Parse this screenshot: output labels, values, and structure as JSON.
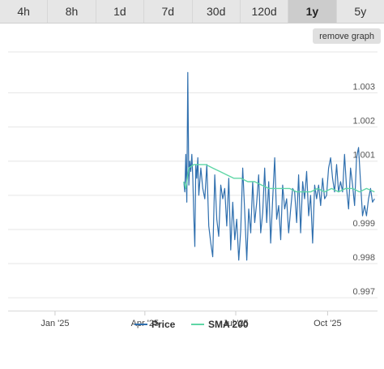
{
  "tabs": [
    {
      "label": "4h"
    },
    {
      "label": "8h"
    },
    {
      "label": "1d"
    },
    {
      "label": "7d"
    },
    {
      "label": "30d"
    },
    {
      "label": "120d"
    },
    {
      "label": "1y"
    },
    {
      "label": "5y"
    }
  ],
  "active_tab": "1y",
  "remove_graph_label": "remove graph",
  "chart_data": {
    "type": "line",
    "title": "",
    "xlabel": "",
    "ylabel": "",
    "ylim": [
      0.9966,
      1.0042
    ],
    "xlim": [
      "2024-11-15",
      "2025-11-20"
    ],
    "y_ticks": [
      0.997,
      0.998,
      0.999,
      1.0,
      1.001,
      1.002,
      1.003
    ],
    "y_tick_labels": [
      "0.997",
      "0.998",
      "0.999",
      "",
      "1.001",
      "1.002",
      "1.003"
    ],
    "x_ticks": [
      "2025-01-01",
      "2025-04-01",
      "2025-07-01",
      "2025-10-01"
    ],
    "x_tick_labels": [
      "Jan '25",
      "Apr '25",
      "Jul '25",
      "Oct '25"
    ],
    "grid": true,
    "legend_position": "bottom",
    "colors": {
      "Price": "#2f6fae",
      "SMA 200": "#5fd6a6"
    },
    "series": [
      {
        "name": "Price",
        "x": [
          "2025-05-10",
          "2025-05-11",
          "2025-05-12",
          "2025-05-13",
          "2025-05-14",
          "2025-05-15",
          "2025-05-16",
          "2025-05-17",
          "2025-05-18",
          "2025-05-19",
          "2025-05-20",
          "2025-05-21",
          "2025-05-22",
          "2025-05-23",
          "2025-05-24",
          "2025-05-25",
          "2025-05-27",
          "2025-05-29",
          "2025-05-31",
          "2025-06-02",
          "2025-06-04",
          "2025-06-06",
          "2025-06-08",
          "2025-06-10",
          "2025-06-12",
          "2025-06-14",
          "2025-06-16",
          "2025-06-18",
          "2025-06-20",
          "2025-06-22",
          "2025-06-24",
          "2025-06-26",
          "2025-06-28",
          "2025-06-30",
          "2025-07-02",
          "2025-07-04",
          "2025-07-06",
          "2025-07-08",
          "2025-07-10",
          "2025-07-12",
          "2025-07-14",
          "2025-07-16",
          "2025-07-18",
          "2025-07-20",
          "2025-07-22",
          "2025-07-24",
          "2025-07-26",
          "2025-07-28",
          "2025-07-30",
          "2025-08-01",
          "2025-08-03",
          "2025-08-05",
          "2025-08-07",
          "2025-08-09",
          "2025-08-11",
          "2025-08-13",
          "2025-08-15",
          "2025-08-17",
          "2025-08-19",
          "2025-08-21",
          "2025-08-23",
          "2025-08-25",
          "2025-08-27",
          "2025-08-29",
          "2025-08-31",
          "2025-09-02",
          "2025-09-04",
          "2025-09-06",
          "2025-09-08",
          "2025-09-10",
          "2025-09-12",
          "2025-09-14",
          "2025-09-16",
          "2025-09-18",
          "2025-09-20",
          "2025-09-22",
          "2025-09-24",
          "2025-09-26",
          "2025-09-28",
          "2025-09-30",
          "2025-10-02",
          "2025-10-04",
          "2025-10-06",
          "2025-10-08",
          "2025-10-10",
          "2025-10-12",
          "2025-10-14",
          "2025-10-16",
          "2025-10-18",
          "2025-10-20",
          "2025-10-22",
          "2025-10-24",
          "2025-10-26",
          "2025-10-28",
          "2025-10-30",
          "2025-11-01",
          "2025-11-03",
          "2025-11-05",
          "2025-11-07",
          "2025-11-09",
          "2025-11-11",
          "2025-11-13",
          "2025-11-15",
          "2025-11-17"
        ],
        "values": [
          1.0004,
          1.0001,
          1.0012,
          0.9998,
          1.0036,
          1.0003,
          1.001,
          1.0007,
          1.0012,
          1.0005,
          0.9994,
          0.9985,
          1.0009,
          1.0005,
          1.0011,
          1.0,
          1.0008,
          1.0002,
          0.9999,
          1.0009,
          0.9991,
          0.9986,
          0.9982,
          1.0006,
          0.9993,
          0.9988,
          1.0003,
          0.9999,
          1.0002,
          0.9991,
          1.0005,
          0.9984,
          0.9998,
          0.9987,
          0.9993,
          0.9981,
          0.999,
          1.0008,
          0.9995,
          0.9981,
          0.9996,
          0.9989,
          1.0004,
          0.9992,
          0.9998,
          1.0006,
          0.9989,
          0.9995,
          1.0008,
          0.9992,
          1.0004,
          0.9986,
          0.9999,
          1.0011,
          0.9993,
          0.9997,
          0.9987,
          1.0003,
          0.9996,
          0.9999,
          0.9989,
          0.9996,
          1.0002,
          1.0001,
          0.9992,
          1.0006,
          0.9989,
          1.0004,
          0.9999,
          1.0007,
          0.9994,
          1.0,
          0.9986,
          1.0003,
          0.9999,
          1.0003,
          0.9997,
          1.0005,
          0.9999,
          1.0,
          1.0008,
          1.0011,
          1.0005,
          1.0001,
          1.0009,
          1.0001,
          1.0004,
          1.0001,
          1.0012,
          1.0002,
          0.9996,
          1.0008,
          1.0003,
          0.9997,
          1.0011,
          1.0014,
          1.0004,
          0.9994,
          0.9997,
          0.9994,
          0.9999,
          1.0002,
          0.9998,
          0.9999
        ]
      },
      {
        "name": "SMA 200",
        "x": [
          "2025-05-10",
          "2025-05-12",
          "2025-05-15",
          "2025-05-20",
          "2025-05-25",
          "2025-06-01",
          "2025-06-08",
          "2025-06-15",
          "2025-06-22",
          "2025-06-29",
          "2025-07-06",
          "2025-07-13",
          "2025-07-20",
          "2025-07-27",
          "2025-08-03",
          "2025-08-10",
          "2025-08-17",
          "2025-08-24",
          "2025-08-31",
          "2025-09-07",
          "2025-09-14",
          "2025-09-21",
          "2025-09-28",
          "2025-10-05",
          "2025-10-12",
          "2025-10-19",
          "2025-10-26",
          "2025-11-02",
          "2025-11-09",
          "2025-11-17"
        ],
        "values": [
          1.0004,
          1.0002,
          1.0008,
          1.0009,
          1.0009,
          1.0009,
          1.0008,
          1.0007,
          1.0006,
          1.0005,
          1.0005,
          1.0004,
          1.0004,
          1.0003,
          1.0002,
          1.0002,
          1.0002,
          1.0002,
          1.0001,
          1.0001,
          1.0001,
          1.0002,
          1.0001,
          1.0002,
          1.0001,
          1.0002,
          1.0002,
          1.0001,
          1.0002,
          1.0001
        ]
      }
    ]
  }
}
